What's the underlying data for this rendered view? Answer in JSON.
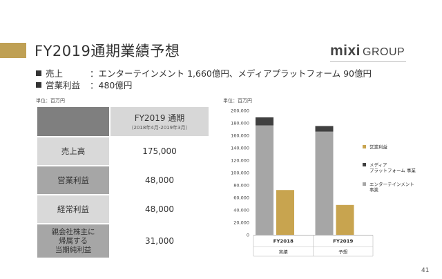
{
  "slide": {
    "title": "FY2019通期業績予想",
    "logo": {
      "mixi": "mixi",
      "group": "GROUP"
    },
    "bullets": [
      {
        "label": "売上",
        "text": "：エンターテインメント 1,660億円、メディアプラットフォーム 90億円"
      },
      {
        "label": "営業利益",
        "text": "：480億円"
      }
    ],
    "unit_left": "単位：百万円",
    "unit_right": "単位：百万円",
    "page_number": "41",
    "accent_color": "#bfa054"
  },
  "table": {
    "header": {
      "title": "FY2019 通期",
      "subtitle": "（2018年4月-2019年3月）"
    },
    "rows": [
      {
        "label": "売上高",
        "value": "175,000"
      },
      {
        "label": "営業利益",
        "value": "48,000"
      },
      {
        "label": "経常利益",
        "value": "48,000"
      },
      {
        "label_lines": [
          "親会社株主に",
          "帰属する",
          "当期純利益"
        ],
        "value": "31,000"
      }
    ]
  },
  "chart_data": {
    "type": "bar",
    "categories": [
      "FY2018",
      "FY2019"
    ],
    "category_sublabels": [
      "実績",
      "予想"
    ],
    "ylim": [
      0,
      200000
    ],
    "yticks": [
      0,
      20000,
      40000,
      60000,
      80000,
      100000,
      120000,
      140000,
      160000,
      180000,
      200000
    ],
    "ytick_labels": [
      "0",
      "20,000",
      "40,000",
      "60,000",
      "80,000",
      "100,000",
      "120,000",
      "140,000",
      "160,000",
      "180,000",
      "200,000"
    ],
    "stack": {
      "series": [
        {
          "name": "エンターテインメント 事業",
          "legend_lines": [
            "エンターテインメント",
            "事業"
          ],
          "color": "#a6a6a6",
          "values": [
            176000,
            166000
          ]
        },
        {
          "name": "メディア プラットフォーム 事業",
          "legend_lines": [
            "メディア",
            "プラットフォーム 事業"
          ],
          "color": "#404040",
          "values": [
            13000,
            9000
          ]
        }
      ]
    },
    "side": {
      "series": [
        {
          "name": "営業利益",
          "legend_lines": [
            "営業利益"
          ],
          "color": "#c8a44f",
          "values": [
            72000,
            48000
          ]
        }
      ]
    },
    "legend": "right",
    "grid": false
  }
}
